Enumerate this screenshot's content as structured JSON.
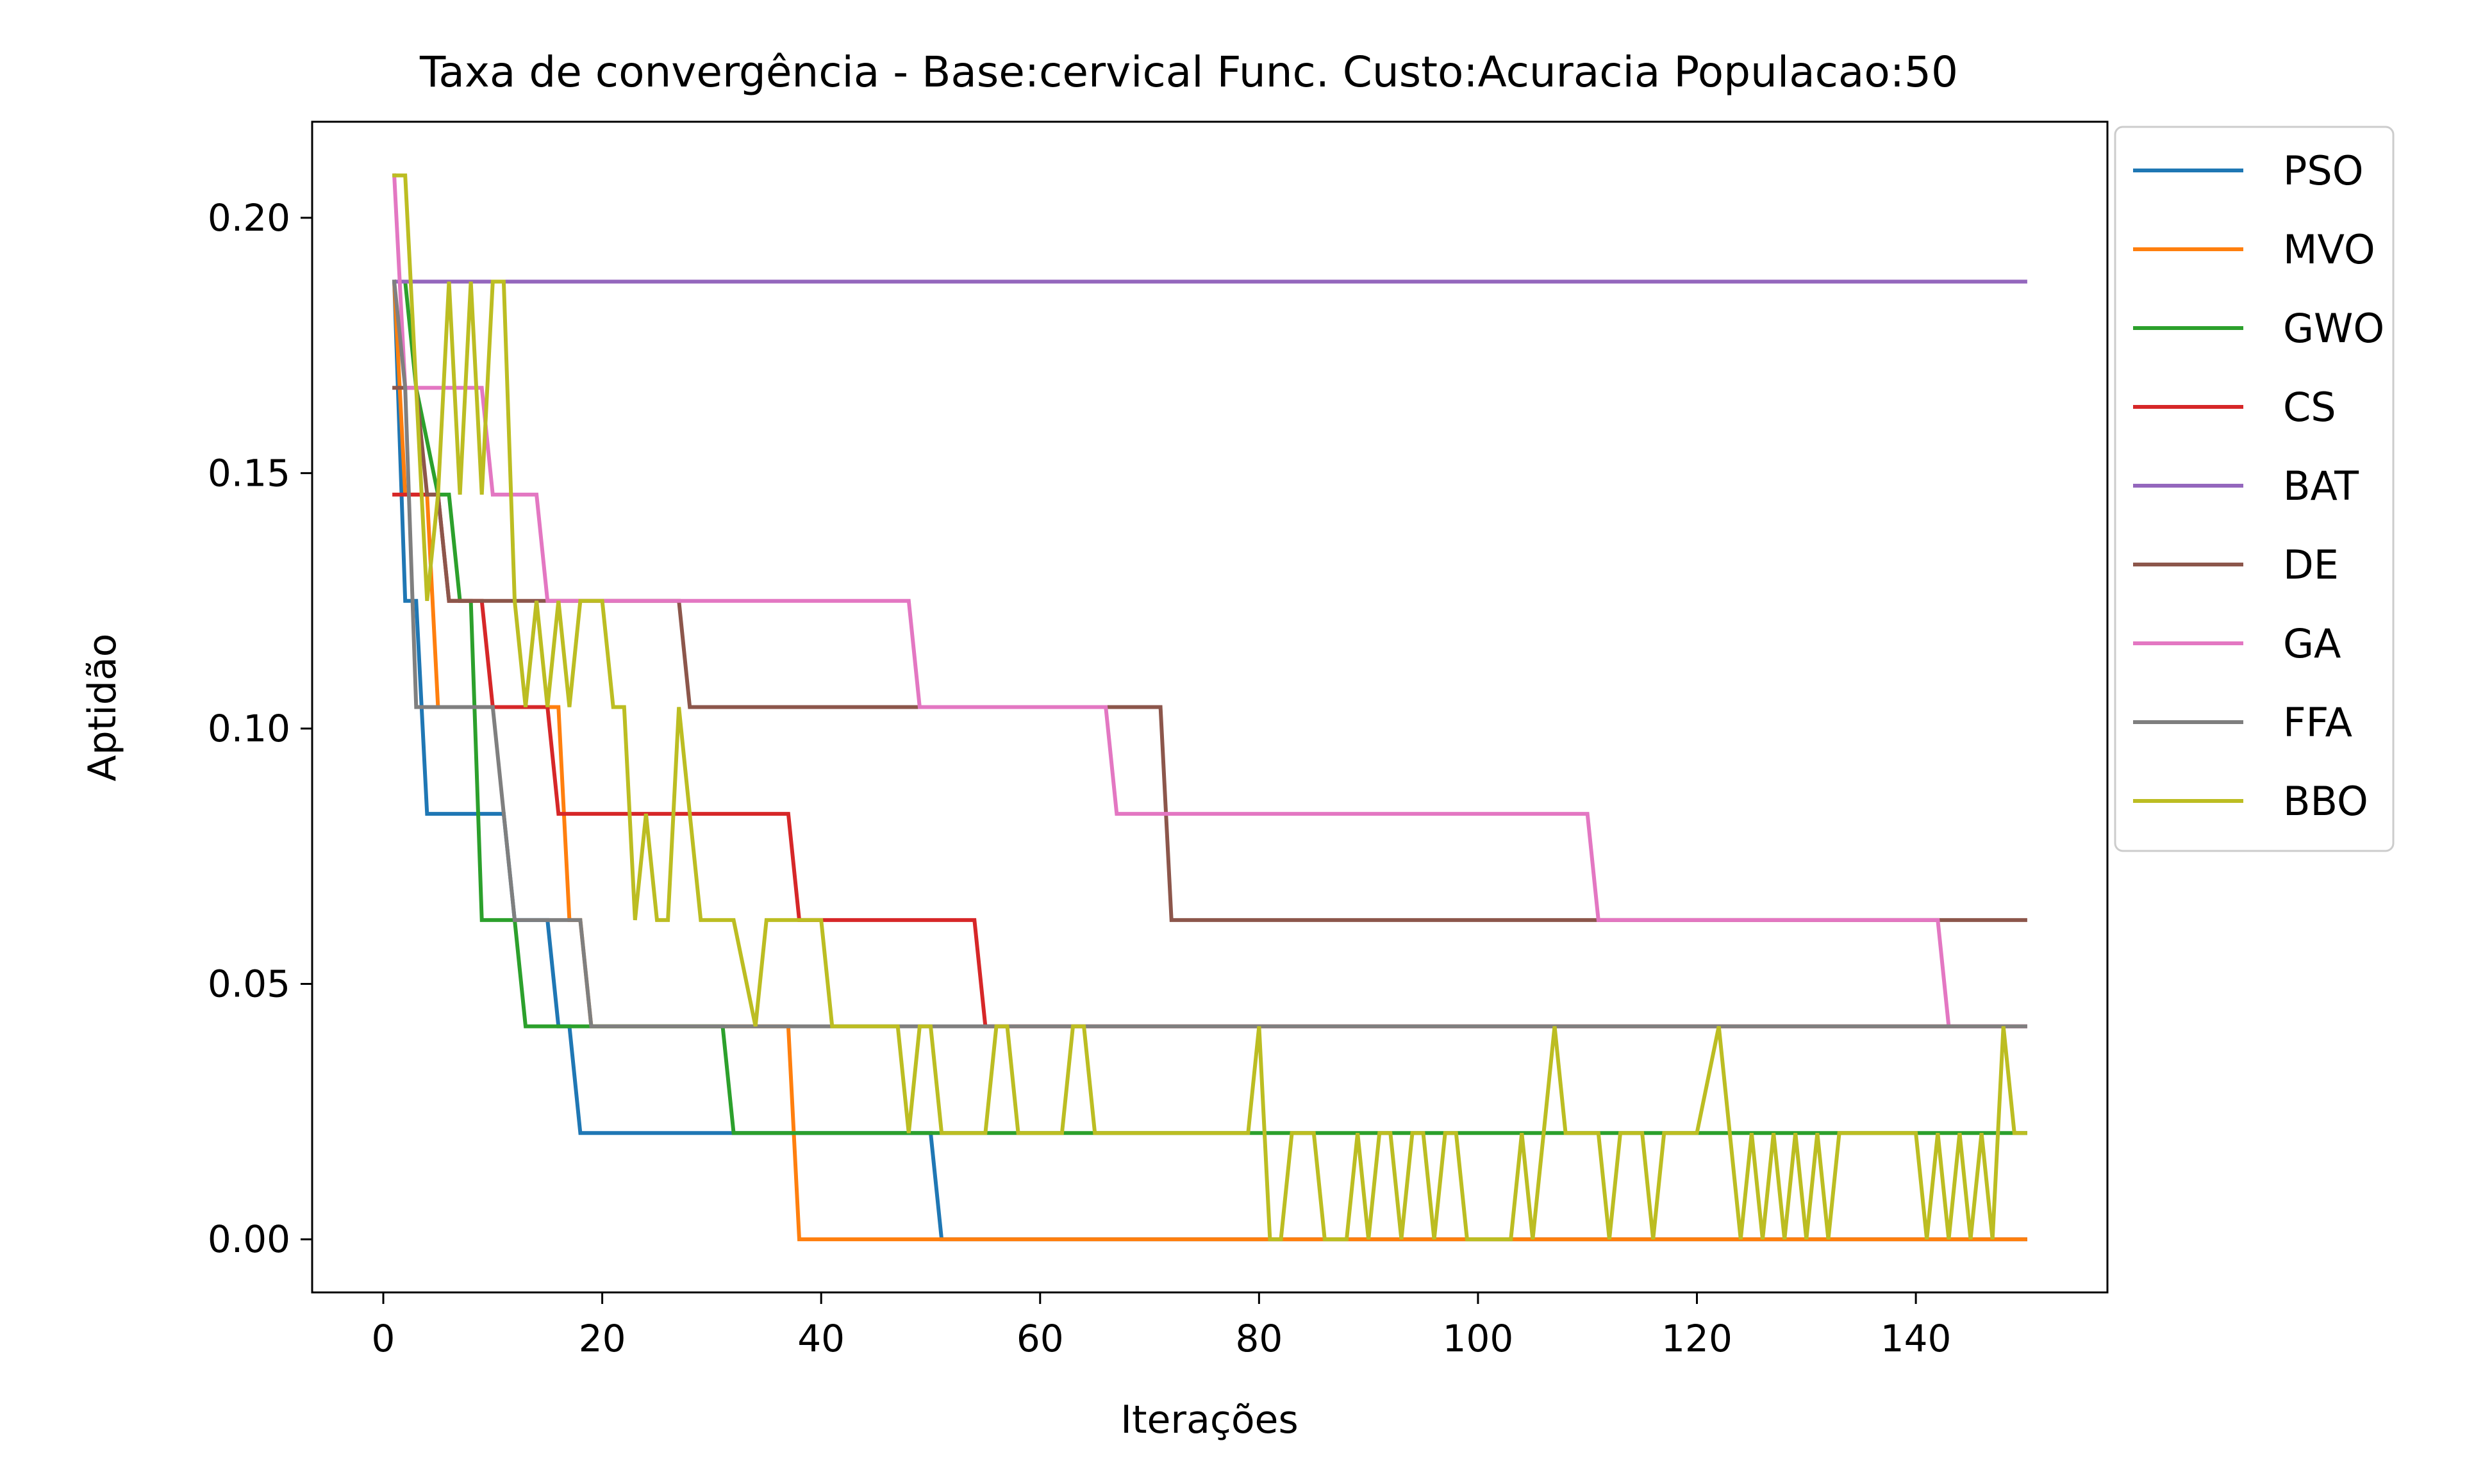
{
  "chart_data": {
    "type": "line",
    "title": "Taxa de convergência - Base:cervical Func. Custo:Acuracia Populacao:50",
    "xlabel": "Iterações",
    "ylabel": "Aptidão",
    "xlim": [
      -6.5,
      157.5
    ],
    "ylim": [
      -0.0104,
      0.2188
    ],
    "xticks": [
      0,
      20,
      40,
      60,
      80,
      100,
      120,
      140
    ],
    "yticks": [
      0.0,
      0.05,
      0.1,
      0.15,
      0.2
    ],
    "xtick_labels": [
      "0",
      "20",
      "40",
      "60",
      "80",
      "100",
      "120",
      "140"
    ],
    "ytick_labels": [
      "0.00",
      "0.05",
      "0.10",
      "0.15",
      "0.20"
    ],
    "grid": false,
    "legend_position": "outside-upper-right",
    "series": [
      {
        "name": "PSO",
        "color": "#1f77b4",
        "points": [
          [
            1,
            0.1875
          ],
          [
            2,
            0.125
          ],
          [
            3,
            0.125
          ],
          [
            4,
            0.0833
          ],
          [
            11,
            0.0833
          ],
          [
            12,
            0.0625
          ],
          [
            15,
            0.0625
          ],
          [
            16,
            0.0417
          ],
          [
            17,
            0.0417
          ],
          [
            18,
            0.0208
          ],
          [
            50,
            0.0208
          ],
          [
            51,
            0.0
          ],
          [
            150,
            0.0
          ]
        ]
      },
      {
        "name": "MVO",
        "color": "#ff7f0e",
        "points": [
          [
            1,
            0.1875
          ],
          [
            2,
            0.1458
          ],
          [
            4,
            0.1458
          ],
          [
            5,
            0.1042
          ],
          [
            16,
            0.1042
          ],
          [
            17,
            0.0625
          ],
          [
            18,
            0.0625
          ],
          [
            19,
            0.0417
          ],
          [
            37,
            0.0417
          ],
          [
            38,
            0.0
          ],
          [
            150,
            0.0
          ]
        ]
      },
      {
        "name": "GWO",
        "color": "#2ca02c",
        "points": [
          [
            1,
            0.1875
          ],
          [
            2,
            0.1875
          ],
          [
            3,
            0.1667
          ],
          [
            5,
            0.1458
          ],
          [
            6,
            0.1458
          ],
          [
            7,
            0.125
          ],
          [
            8,
            0.125
          ],
          [
            9,
            0.0625
          ],
          [
            12,
            0.0625
          ],
          [
            13,
            0.0417
          ],
          [
            31,
            0.0417
          ],
          [
            32,
            0.0208
          ],
          [
            150,
            0.0208
          ]
        ]
      },
      {
        "name": "CS",
        "color": "#d62728",
        "points": [
          [
            1,
            0.1458
          ],
          [
            5,
            0.1458
          ],
          [
            6,
            0.125
          ],
          [
            9,
            0.125
          ],
          [
            10,
            0.1042
          ],
          [
            15,
            0.1042
          ],
          [
            16,
            0.0833
          ],
          [
            37,
            0.0833
          ],
          [
            38,
            0.0625
          ],
          [
            54,
            0.0625
          ],
          [
            55,
            0.0417
          ],
          [
            150,
            0.0417
          ]
        ]
      },
      {
        "name": "BAT",
        "color": "#9467bd",
        "points": [
          [
            1,
            0.1875
          ],
          [
            150,
            0.1875
          ]
        ]
      },
      {
        "name": "DE",
        "color": "#8c564b",
        "points": [
          [
            1,
            0.1667
          ],
          [
            3,
            0.1667
          ],
          [
            4,
            0.1458
          ],
          [
            5,
            0.1458
          ],
          [
            6,
            0.125
          ],
          [
            27,
            0.125
          ],
          [
            28,
            0.1042
          ],
          [
            71,
            0.1042
          ],
          [
            72,
            0.0625
          ],
          [
            150,
            0.0625
          ]
        ]
      },
      {
        "name": "GA",
        "color": "#e377c2",
        "points": [
          [
            1,
            0.2083
          ],
          [
            2,
            0.1667
          ],
          [
            9,
            0.1667
          ],
          [
            10,
            0.1458
          ],
          [
            14,
            0.1458
          ],
          [
            15,
            0.125
          ],
          [
            48,
            0.125
          ],
          [
            49,
            0.1042
          ],
          [
            66,
            0.1042
          ],
          [
            67,
            0.0833
          ],
          [
            110,
            0.0833
          ],
          [
            111,
            0.0625
          ],
          [
            142,
            0.0625
          ],
          [
            143,
            0.0417
          ],
          [
            150,
            0.0417
          ]
        ]
      },
      {
        "name": "FFA",
        "color": "#7f7f7f",
        "points": [
          [
            1,
            0.1875
          ],
          [
            2,
            0.1667
          ],
          [
            3,
            0.1042
          ],
          [
            10,
            0.1042
          ],
          [
            12,
            0.0625
          ],
          [
            18,
            0.0625
          ],
          [
            19,
            0.0417
          ],
          [
            150,
            0.0417
          ]
        ]
      },
      {
        "name": "BBO",
        "color": "#bcbd22",
        "points": [
          [
            1,
            0.2083
          ],
          [
            2,
            0.2083
          ],
          [
            3,
            0.1667
          ],
          [
            4,
            0.125
          ],
          [
            5,
            0.1458
          ],
          [
            6,
            0.1875
          ],
          [
            7,
            0.1458
          ],
          [
            8,
            0.1875
          ],
          [
            9,
            0.1458
          ],
          [
            10,
            0.1875
          ],
          [
            11,
            0.1875
          ],
          [
            12,
            0.125
          ],
          [
            13,
            0.1042
          ],
          [
            14,
            0.125
          ],
          [
            15,
            0.1042
          ],
          [
            16,
            0.125
          ],
          [
            17,
            0.1042
          ],
          [
            18,
            0.125
          ],
          [
            19,
            0.125
          ],
          [
            20,
            0.125
          ],
          [
            21,
            0.1042
          ],
          [
            22,
            0.1042
          ],
          [
            23,
            0.0625
          ],
          [
            24,
            0.0833
          ],
          [
            25,
            0.0625
          ],
          [
            26,
            0.0625
          ],
          [
            27,
            0.1042
          ],
          [
            28,
            0.0833
          ],
          [
            29,
            0.0625
          ],
          [
            32,
            0.0625
          ],
          [
            34,
            0.0417
          ],
          [
            35,
            0.0625
          ],
          [
            39,
            0.0625
          ],
          [
            40,
            0.0625
          ],
          [
            41,
            0.0417
          ],
          [
            47,
            0.0417
          ],
          [
            48,
            0.0208
          ],
          [
            49,
            0.0417
          ],
          [
            50,
            0.0417
          ],
          [
            51,
            0.0208
          ],
          [
            55,
            0.0208
          ],
          [
            56,
            0.0417
          ],
          [
            57,
            0.0417
          ],
          [
            58,
            0.0208
          ],
          [
            62,
            0.0208
          ],
          [
            63,
            0.0417
          ],
          [
            64,
            0.0417
          ],
          [
            65,
            0.0208
          ],
          [
            79,
            0.0208
          ],
          [
            80,
            0.0417
          ],
          [
            81,
            0.0
          ],
          [
            82,
            0.0
          ],
          [
            83,
            0.0208
          ],
          [
            85,
            0.0208
          ],
          [
            86,
            0.0
          ],
          [
            88,
            0.0
          ],
          [
            89,
            0.0208
          ],
          [
            90,
            0.0
          ],
          [
            91,
            0.0208
          ],
          [
            92,
            0.0208
          ],
          [
            93,
            0.0
          ],
          [
            94,
            0.0208
          ],
          [
            95,
            0.0208
          ],
          [
            96,
            0.0
          ],
          [
            97,
            0.0208
          ],
          [
            98,
            0.0208
          ],
          [
            99,
            0.0
          ],
          [
            103,
            0.0
          ],
          [
            104,
            0.0208
          ],
          [
            105,
            0.0
          ],
          [
            106,
            0.0208
          ],
          [
            107,
            0.0417
          ],
          [
            108,
            0.0208
          ],
          [
            111,
            0.0208
          ],
          [
            112,
            0.0
          ],
          [
            113,
            0.0208
          ],
          [
            115,
            0.0208
          ],
          [
            116,
            0.0
          ],
          [
            117,
            0.0208
          ],
          [
            120,
            0.0208
          ],
          [
            122,
            0.0417
          ],
          [
            123,
            0.0208
          ],
          [
            124,
            0.0
          ],
          [
            125,
            0.0208
          ],
          [
            126,
            0.0
          ],
          [
            127,
            0.0208
          ],
          [
            128,
            0.0
          ],
          [
            129,
            0.0208
          ],
          [
            130,
            0.0
          ],
          [
            131,
            0.0208
          ],
          [
            132,
            0.0
          ],
          [
            133,
            0.0208
          ],
          [
            140,
            0.0208
          ],
          [
            141,
            0.0
          ],
          [
            142,
            0.0208
          ],
          [
            143,
            0.0
          ],
          [
            144,
            0.0208
          ],
          [
            145,
            0.0
          ],
          [
            146,
            0.0208
          ],
          [
            147,
            0.0
          ],
          [
            148,
            0.0417
          ],
          [
            149,
            0.0208
          ],
          [
            150,
            0.0208
          ]
        ]
      }
    ]
  }
}
